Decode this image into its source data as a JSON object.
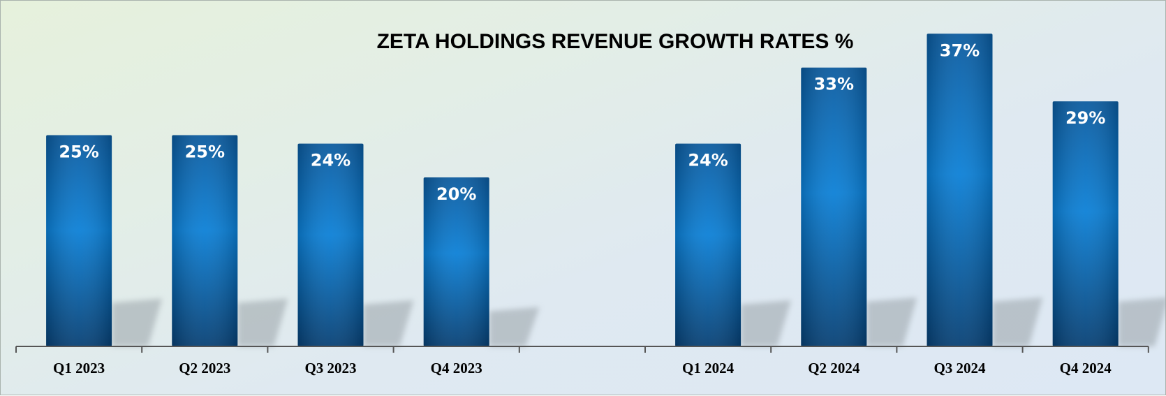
{
  "chart_data": {
    "type": "bar",
    "title": "ZETA HOLDINGS REVENUE GROWTH RATES %",
    "xlabel": "",
    "ylabel": "",
    "categories": [
      "Q1 2023",
      "Q2 2023",
      "Q3 2023",
      "Q4 2023",
      "",
      "Q1 2024",
      "Q2 2024",
      "Q3 2024",
      "Q4 2024"
    ],
    "values": [
      25,
      25,
      24,
      20,
      null,
      24,
      33,
      37,
      29
    ],
    "data_labels": [
      "25%",
      "25%",
      "24%",
      "20%",
      "",
      "24%",
      "33%",
      "37%",
      "29%"
    ],
    "ylim": [
      0,
      40
    ],
    "grid": false,
    "legend": "none",
    "colors": {
      "bar_top": "#0a5a9e",
      "bar_mid": "#0a7fd6",
      "bar_bottom": "#063f73",
      "shadow": "#9aa3a8",
      "axis": "#555555"
    }
  }
}
